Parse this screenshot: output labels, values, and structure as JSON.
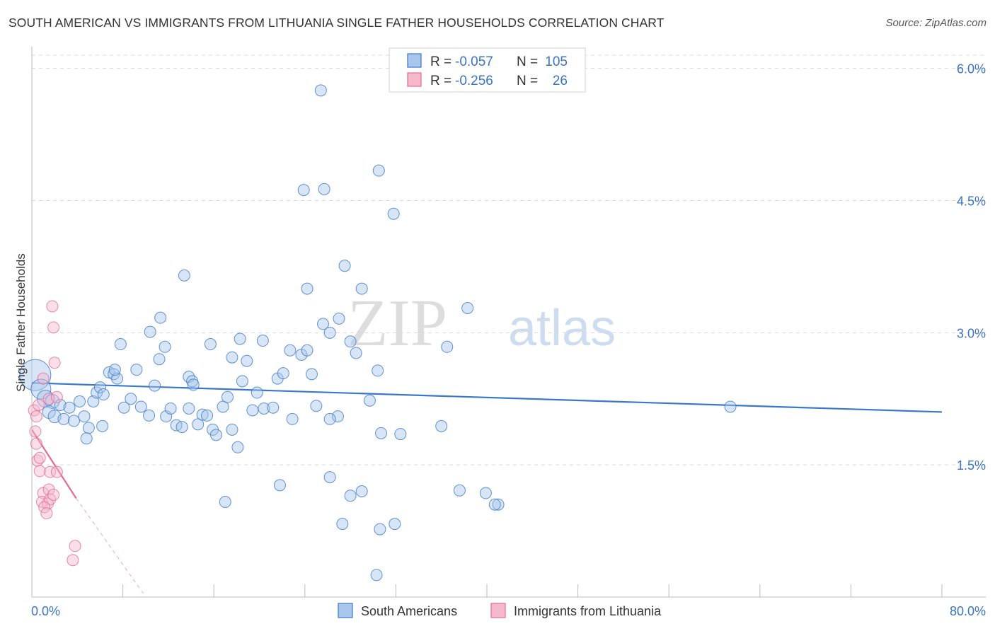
{
  "title": "SOUTH AMERICAN VS IMMIGRANTS FROM LITHUANIA SINGLE FATHER HOUSEHOLDS CORRELATION CHART",
  "source": "Source: ZipAtlas.com",
  "watermark": {
    "zip": "ZIP",
    "atlas": "atlas"
  },
  "colors": {
    "blue": "#3a78c8",
    "blue_fill": "#a9c6ec",
    "pink": "#e36b93",
    "pink_fill": "#f5b8cb",
    "grid": "#d9d9d9",
    "tick_label": "#3b74c4"
  },
  "legend_box": {
    "rows": [
      {
        "r_label": "R =",
        "r_value": "-0.057",
        "n_label": "N =",
        "n_value": "105"
      },
      {
        "r_label": "R =",
        "r_value": "-0.256",
        "n_label": "N =",
        "n_value": "26"
      }
    ]
  },
  "chart_data": {
    "type": "scatter",
    "title": "SOUTH AMERICAN VS IMMIGRANTS FROM LITHUANIA SINGLE FATHER HOUSEHOLDS CORRELATION CHART",
    "xlabel": "",
    "ylabel": "Single Father Households",
    "xlim": [
      0,
      80
    ],
    "ylim": [
      0,
      6.15
    ],
    "x_tick_labels": [
      {
        "value": 0,
        "label": "0.0%"
      },
      {
        "value": 80,
        "label": "80.0%"
      }
    ],
    "y_ticks": [
      {
        "value": 1.5,
        "label": "1.5%"
      },
      {
        "value": 3.0,
        "label": "3.0%"
      },
      {
        "value": 4.5,
        "label": "4.5%"
      },
      {
        "value": 6.0,
        "label": "6.0%"
      }
    ],
    "x_minor_ticks": [
      8,
      16,
      24,
      32,
      40,
      48,
      56,
      64,
      72,
      80
    ],
    "legend": [
      "South Americans",
      "Immigrants from Lithuania"
    ],
    "series": [
      {
        "name": "South Americans",
        "color": "#3a78c8",
        "R": -0.057,
        "N": 105,
        "trend": {
          "x0": 0,
          "y0": 2.43,
          "x1": 80,
          "y1": 2.1
        },
        "points": [
          [
            0.3,
            2.52,
            22
          ],
          [
            0.8,
            2.36,
            14
          ],
          [
            1.2,
            2.25,
            12
          ],
          [
            1.8,
            2.22,
            10
          ],
          [
            1.5,
            2.1,
            9
          ],
          [
            2.0,
            2.05,
            9
          ],
          [
            2.5,
            2.18,
            8
          ],
          [
            2.8,
            2.02,
            8
          ],
          [
            3.3,
            2.15,
            8
          ],
          [
            3.7,
            2.0,
            8
          ],
          [
            4.2,
            2.22,
            8
          ],
          [
            4.6,
            2.05,
            8
          ],
          [
            5.0,
            1.92,
            8
          ],
          [
            4.8,
            1.8,
            8
          ],
          [
            5.4,
            2.22,
            8
          ],
          [
            5.7,
            2.32,
            8
          ],
          [
            6.0,
            2.38,
            8
          ],
          [
            6.3,
            2.3,
            8
          ],
          [
            6.2,
            1.94,
            8
          ],
          [
            6.8,
            2.55,
            8
          ],
          [
            7.2,
            2.53,
            8
          ],
          [
            7.5,
            2.48,
            8
          ],
          [
            7.3,
            2.58,
            8
          ],
          [
            8.1,
            2.15,
            8
          ],
          [
            8.7,
            2.25,
            8
          ],
          [
            9.2,
            2.58,
            8
          ],
          [
            9.6,
            2.16,
            8
          ],
          [
            10.3,
            2.06,
            8
          ],
          [
            10.8,
            2.4,
            8
          ],
          [
            11.2,
            2.7,
            8
          ],
          [
            11.8,
            2.05,
            8
          ],
          [
            12.2,
            2.14,
            8
          ],
          [
            12.7,
            1.95,
            8
          ],
          [
            13.2,
            1.93,
            8
          ],
          [
            13.8,
            2.14,
            8
          ],
          [
            14.6,
            1.96,
            8
          ],
          [
            15.0,
            2.07,
            8
          ],
          [
            15.4,
            2.06,
            8
          ],
          [
            15.9,
            1.9,
            8
          ],
          [
            16.2,
            1.84,
            8
          ],
          [
            16.8,
            2.16,
            8
          ],
          [
            17.2,
            2.27,
            8
          ],
          [
            17.6,
            1.9,
            8
          ],
          [
            18.1,
            1.7,
            8
          ],
          [
            18.5,
            2.45,
            8
          ],
          [
            18.9,
            2.68,
            8
          ],
          [
            19.4,
            2.12,
            8
          ],
          [
            19.8,
            2.32,
            8
          ],
          [
            20.4,
            2.14,
            8
          ],
          [
            21.2,
            2.15,
            8
          ],
          [
            21.6,
            2.48,
            8
          ],
          [
            22.1,
            2.54,
            8
          ],
          [
            22.7,
            2.8,
            8
          ],
          [
            10.4,
            3.01,
            8
          ],
          [
            7.8,
            2.87,
            8
          ],
          [
            11.7,
            2.84,
            8
          ],
          [
            13.8,
            2.5,
            8
          ],
          [
            14.1,
            2.45,
            8
          ],
          [
            14.2,
            2.41,
            8
          ],
          [
            11.3,
            3.17,
            8
          ],
          [
            13.4,
            3.65,
            8
          ],
          [
            15.7,
            2.87,
            8
          ],
          [
            17.6,
            2.72,
            8
          ],
          [
            18.3,
            2.93,
            8
          ],
          [
            20.3,
            2.91,
            8
          ],
          [
            23.7,
            2.75,
            8
          ],
          [
            22.9,
            2.02,
            8
          ],
          [
            24.2,
            2.8,
            8
          ],
          [
            24.6,
            2.53,
            8
          ],
          [
            25.0,
            2.17,
            8
          ],
          [
            25.6,
            3.1,
            8
          ],
          [
            24.2,
            3.5,
            8
          ],
          [
            26.2,
            3.0,
            8
          ],
          [
            27.5,
            3.76,
            8
          ],
          [
            28.0,
            2.9,
            8
          ],
          [
            27.0,
            3.16,
            8
          ],
          [
            29.0,
            3.5,
            8
          ],
          [
            28.5,
            2.77,
            8
          ],
          [
            26.9,
            2.05,
            8
          ],
          [
            29.7,
            2.23,
            8
          ],
          [
            30.4,
            2.57,
            8
          ],
          [
            26.2,
            2.02,
            8
          ],
          [
            30.7,
            1.86,
            8
          ],
          [
            32.4,
            1.85,
            8
          ],
          [
            36.0,
            1.94,
            8
          ],
          [
            36.5,
            2.84,
            8
          ],
          [
            38.3,
            3.28,
            8
          ],
          [
            39.9,
            1.18,
            8
          ],
          [
            41.0,
            1.05,
            8
          ],
          [
            40.7,
            1.05,
            8
          ],
          [
            37.6,
            1.21,
            8
          ],
          [
            30.6,
            0.77,
            8
          ],
          [
            31.9,
            0.83,
            8
          ],
          [
            29.0,
            1.2,
            8
          ],
          [
            26.2,
            1.36,
            8
          ],
          [
            27.3,
            0.83,
            8
          ],
          [
            28.0,
            1.15,
            8
          ],
          [
            30.3,
            0.25,
            8
          ],
          [
            21.8,
            1.27,
            8
          ],
          [
            17.0,
            1.08,
            8
          ],
          [
            23.9,
            4.62,
            8
          ],
          [
            25.4,
            5.75,
            8
          ],
          [
            25.7,
            4.63,
            8
          ],
          [
            30.5,
            4.84,
            8
          ],
          [
            31.8,
            4.35,
            8
          ],
          [
            61.4,
            2.16,
            8
          ]
        ]
      },
      {
        "name": "Immigrants from Lithuania",
        "color": "#e36b93",
        "R": -0.256,
        "N": 26,
        "trend": {
          "x0": 0,
          "y0": 1.9,
          "x1": 3.9,
          "y1": 1.12
        },
        "trend_extension": {
          "x0": 3.9,
          "y0": 1.12,
          "x1": 9.8,
          "y1": 0.04
        },
        "points": [
          [
            0.2,
            2.12,
            8
          ],
          [
            0.4,
            2.05,
            8
          ],
          [
            0.6,
            2.18,
            8
          ],
          [
            1.0,
            2.48,
            8
          ],
          [
            1.5,
            2.25,
            8
          ],
          [
            2.2,
            2.27,
            8
          ],
          [
            0.3,
            1.88,
            8
          ],
          [
            0.4,
            1.74,
            8
          ],
          [
            0.5,
            1.55,
            8
          ],
          [
            0.7,
            1.58,
            8
          ],
          [
            0.7,
            1.43,
            8
          ],
          [
            1.6,
            1.42,
            8
          ],
          [
            2.2,
            1.42,
            8
          ],
          [
            1.0,
            1.18,
            8
          ],
          [
            1.5,
            1.22,
            8
          ],
          [
            0.9,
            1.08,
            8
          ],
          [
            1.4,
            1.06,
            8
          ],
          [
            1.6,
            1.11,
            8
          ],
          [
            1.9,
            1.16,
            8
          ],
          [
            1.1,
            1.02,
            8
          ],
          [
            1.3,
            0.95,
            8
          ],
          [
            1.8,
            3.3,
            8
          ],
          [
            1.9,
            3.06,
            8
          ],
          [
            2.0,
            2.66,
            8
          ],
          [
            3.8,
            0.58,
            8
          ],
          [
            3.6,
            0.42,
            8
          ]
        ]
      }
    ]
  }
}
